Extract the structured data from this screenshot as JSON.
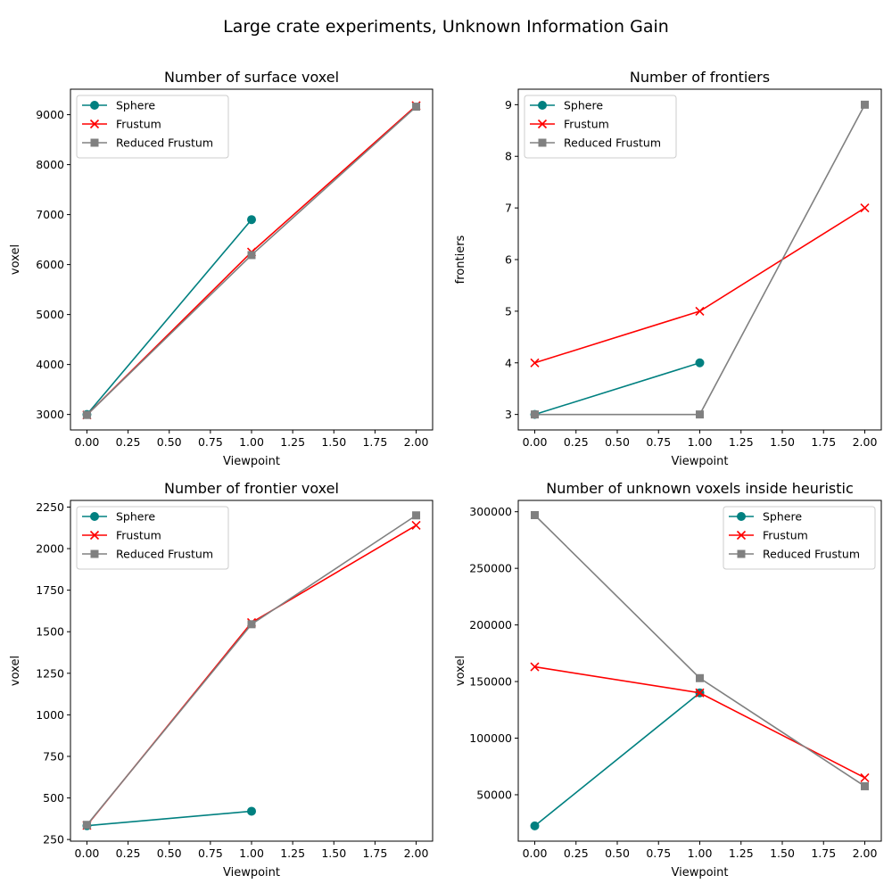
{
  "figure": {
    "suptitle": "Large crate experiments, Unknown Information Gain"
  },
  "colors": {
    "Sphere": "#008080",
    "Frustum": "#ff0000",
    "Reduced Frustum": "#808080"
  },
  "markers": {
    "Sphere": "circle",
    "Frustum": "x",
    "Reduced Frustum": "square"
  },
  "chart_data": [
    {
      "type": "line",
      "title": "Number of surface voxel",
      "xlabel": "Viewpoint",
      "ylabel": "voxel",
      "xlim": [
        -0.1,
        2.1
      ],
      "ylim": [
        2690,
        9510
      ],
      "xticks": [
        0,
        0.25,
        0.5,
        0.75,
        1,
        1.25,
        1.5,
        1.75,
        2
      ],
      "xtick_labels": [
        "0.00",
        "0.25",
        "0.50",
        "0.75",
        "1.00",
        "1.25",
        "1.50",
        "1.75",
        "2.00"
      ],
      "yticks": [
        3000,
        4000,
        5000,
        6000,
        7000,
        8000,
        9000
      ],
      "ytick_labels": [
        "3000",
        "4000",
        "5000",
        "6000",
        "7000",
        "8000",
        "9000"
      ],
      "grid": false,
      "legend": "upper left",
      "series": [
        {
          "name": "Sphere",
          "x": [
            0,
            1
          ],
          "y": [
            3000,
            6900
          ]
        },
        {
          "name": "Frustum",
          "x": [
            0,
            1,
            2
          ],
          "y": [
            2990,
            6250,
            9180
          ]
        },
        {
          "name": "Reduced Frustum",
          "x": [
            0,
            1,
            2
          ],
          "y": [
            2990,
            6190,
            9160
          ]
        }
      ]
    },
    {
      "type": "line",
      "title": "Number of frontiers",
      "xlabel": "Viewpoint",
      "ylabel": "frontiers",
      "xlim": [
        -0.1,
        2.1
      ],
      "ylim": [
        2.7,
        9.3
      ],
      "xticks": [
        0,
        0.25,
        0.5,
        0.75,
        1,
        1.25,
        1.5,
        1.75,
        2
      ],
      "xtick_labels": [
        "0.00",
        "0.25",
        "0.50",
        "0.75",
        "1.00",
        "1.25",
        "1.50",
        "1.75",
        "2.00"
      ],
      "yticks": [
        3,
        4,
        5,
        6,
        7,
        8,
        9
      ],
      "ytick_labels": [
        "3",
        "4",
        "5",
        "6",
        "7",
        "8",
        "9"
      ],
      "grid": false,
      "legend": "upper left",
      "series": [
        {
          "name": "Sphere",
          "x": [
            0,
            1
          ],
          "y": [
            3,
            4
          ]
        },
        {
          "name": "Frustum",
          "x": [
            0,
            1,
            2
          ],
          "y": [
            4,
            5,
            7
          ]
        },
        {
          "name": "Reduced Frustum",
          "x": [
            0,
            1,
            2
          ],
          "y": [
            3,
            3,
            9
          ]
        }
      ]
    },
    {
      "type": "line",
      "title": "Number of frontier voxel",
      "xlabel": "Viewpoint",
      "ylabel": "voxel",
      "xlim": [
        -0.1,
        2.1
      ],
      "ylim": [
        240,
        2290
      ],
      "xticks": [
        0,
        0.25,
        0.5,
        0.75,
        1,
        1.25,
        1.5,
        1.75,
        2
      ],
      "xtick_labels": [
        "0.00",
        "0.25",
        "0.50",
        "0.75",
        "1.00",
        "1.25",
        "1.50",
        "1.75",
        "2.00"
      ],
      "yticks": [
        250,
        500,
        750,
        1000,
        1250,
        1500,
        1750,
        2000,
        2250
      ],
      "ytick_labels": [
        "250",
        "500",
        "750",
        "1000",
        "1250",
        "1500",
        "1750",
        "2000",
        "2250"
      ],
      "grid": false,
      "legend": "upper left",
      "series": [
        {
          "name": "Sphere",
          "x": [
            0,
            1
          ],
          "y": [
            333,
            420
          ]
        },
        {
          "name": "Frustum",
          "x": [
            0,
            1,
            2
          ],
          "y": [
            335,
            1555,
            2140
          ]
        },
        {
          "name": "Reduced Frustum",
          "x": [
            0,
            1,
            2
          ],
          "y": [
            338,
            1545,
            2200
          ]
        }
      ]
    },
    {
      "type": "line",
      "title": "Number of unknown voxels inside heuristic",
      "xlabel": "Viewpoint",
      "ylabel": "voxel",
      "xlim": [
        -0.1,
        2.1
      ],
      "ylim": [
        9000,
        310000
      ],
      "xticks": [
        0,
        0.25,
        0.5,
        0.75,
        1,
        1.25,
        1.5,
        1.75,
        2
      ],
      "xtick_labels": [
        "0.00",
        "0.25",
        "0.50",
        "0.75",
        "1.00",
        "1.25",
        "1.50",
        "1.75",
        "2.00"
      ],
      "yticks": [
        50000,
        100000,
        150000,
        200000,
        250000,
        300000
      ],
      "ytick_labels": [
        "50000",
        "100000",
        "150000",
        "200000",
        "250000",
        "300000"
      ],
      "grid": false,
      "legend": "upper right",
      "series": [
        {
          "name": "Sphere",
          "x": [
            0,
            1
          ],
          "y": [
            22500,
            140000
          ]
        },
        {
          "name": "Frustum",
          "x": [
            0,
            1,
            2
          ],
          "y": [
            163000,
            140000,
            65000
          ]
        },
        {
          "name": "Reduced Frustum",
          "x": [
            0,
            1,
            2
          ],
          "y": [
            297000,
            153000,
            57500
          ]
        }
      ]
    }
  ]
}
